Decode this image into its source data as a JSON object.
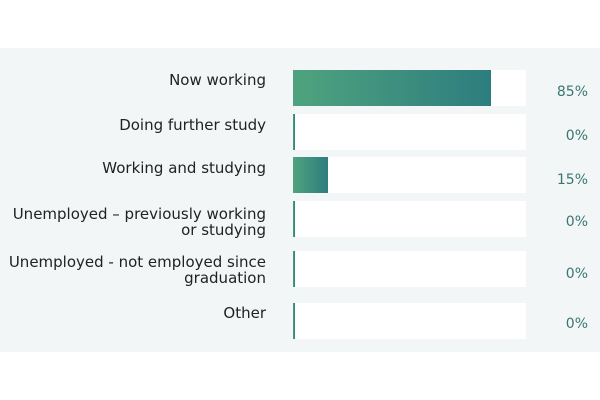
{
  "colors": {
    "bar_start": "#4fa37d",
    "bar_end": "#2d7d7f",
    "track": "#ffffff",
    "panel": "#f3f6f6",
    "value_text": "#3a7574"
  },
  "chart_data": {
    "type": "bar",
    "orientation": "horizontal",
    "categories": [
      "Now working",
      "Doing further study",
      "Working and studying",
      "Unemployed – previously working or studying",
      "Unemployed - not employed since graduation",
      "Other"
    ],
    "values": [
      85,
      0,
      15,
      0,
      0,
      0
    ],
    "value_labels": [
      "85%",
      "0%",
      "15%",
      "0%",
      "0%",
      "0%"
    ],
    "xlim": [
      0,
      100
    ],
    "grid": false,
    "legend": "none"
  }
}
